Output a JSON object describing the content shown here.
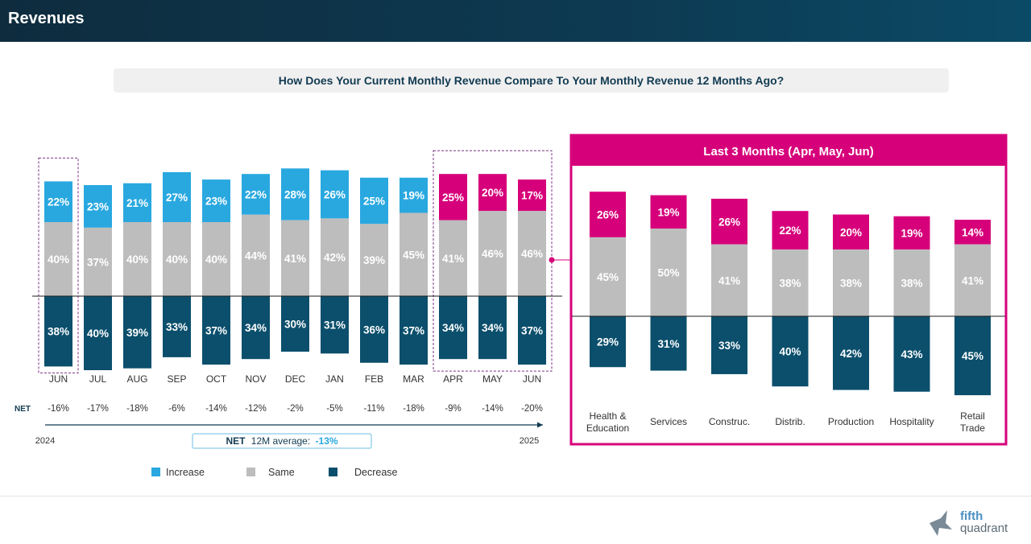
{
  "page": {
    "title": "Revenues",
    "question": "How Does Your Current Monthly Revenue Compare To Your Monthly Revenue 12 Months Ago?",
    "brand": {
      "line1": "fifth",
      "line2": "quadrant"
    }
  },
  "colors": {
    "increase": "#29a8e0",
    "same": "#bdbdbd",
    "decrease": "#0b4f6c",
    "highlight": "#d6007a",
    "header": "#0e2c3e",
    "text": "#123b52"
  },
  "summary": {
    "net_label": "NET",
    "start_year": "2024",
    "end_year": "2025",
    "avg_prefix": "NET",
    "avg_text": "12M average:",
    "avg_value": "-13%"
  },
  "chart_data": [
    {
      "type": "bar",
      "subtype": "diverging-stacked",
      "title": "How Does Your Current Monthly Revenue Compare To Your Monthly Revenue 12 Months Ago?",
      "categories": [
        "JUN",
        "JUL",
        "AUG",
        "SEP",
        "OCT",
        "NOV",
        "DEC",
        "JAN",
        "FEB",
        "MAR",
        "APR",
        "MAY",
        "JUN"
      ],
      "series": [
        {
          "name": "Increase",
          "values": [
            22,
            23,
            21,
            27,
            23,
            22,
            28,
            26,
            25,
            19,
            25,
            20,
            17
          ]
        },
        {
          "name": "Same",
          "values": [
            40,
            37,
            40,
            40,
            40,
            44,
            41,
            42,
            39,
            45,
            41,
            46,
            46
          ]
        },
        {
          "name": "Decrease",
          "values": [
            38,
            40,
            39,
            33,
            37,
            34,
            30,
            31,
            36,
            37,
            34,
            34,
            37
          ]
        }
      ],
      "net": [
        "-16%",
        "-17%",
        "-18%",
        "-6%",
        "-14%",
        "-12%",
        "-2%",
        "-5%",
        "-11%",
        "-18%",
        "-9%",
        "-14%",
        "-20%"
      ],
      "highlighted_months": [
        0,
        10,
        11,
        12
      ],
      "legend": [
        "Increase",
        "Same",
        "Decrease"
      ],
      "legend_position": "bottom"
    },
    {
      "type": "bar",
      "subtype": "diverging-stacked",
      "title": "Last 3 Months (Apr, May, Jun)",
      "categories": [
        [
          "Health &",
          "Education"
        ],
        [
          "Services"
        ],
        [
          "Construc."
        ],
        [
          "Distrib."
        ],
        [
          "Production"
        ],
        [
          "Hospitality"
        ],
        [
          "Retail",
          "Trade"
        ]
      ],
      "series": [
        {
          "name": "Increase",
          "values": [
            26,
            19,
            26,
            22,
            20,
            19,
            14
          ]
        },
        {
          "name": "Same",
          "values": [
            45,
            50,
            41,
            38,
            38,
            38,
            41
          ]
        },
        {
          "name": "Decrease",
          "values": [
            29,
            31,
            33,
            40,
            42,
            43,
            45
          ]
        }
      ]
    }
  ]
}
